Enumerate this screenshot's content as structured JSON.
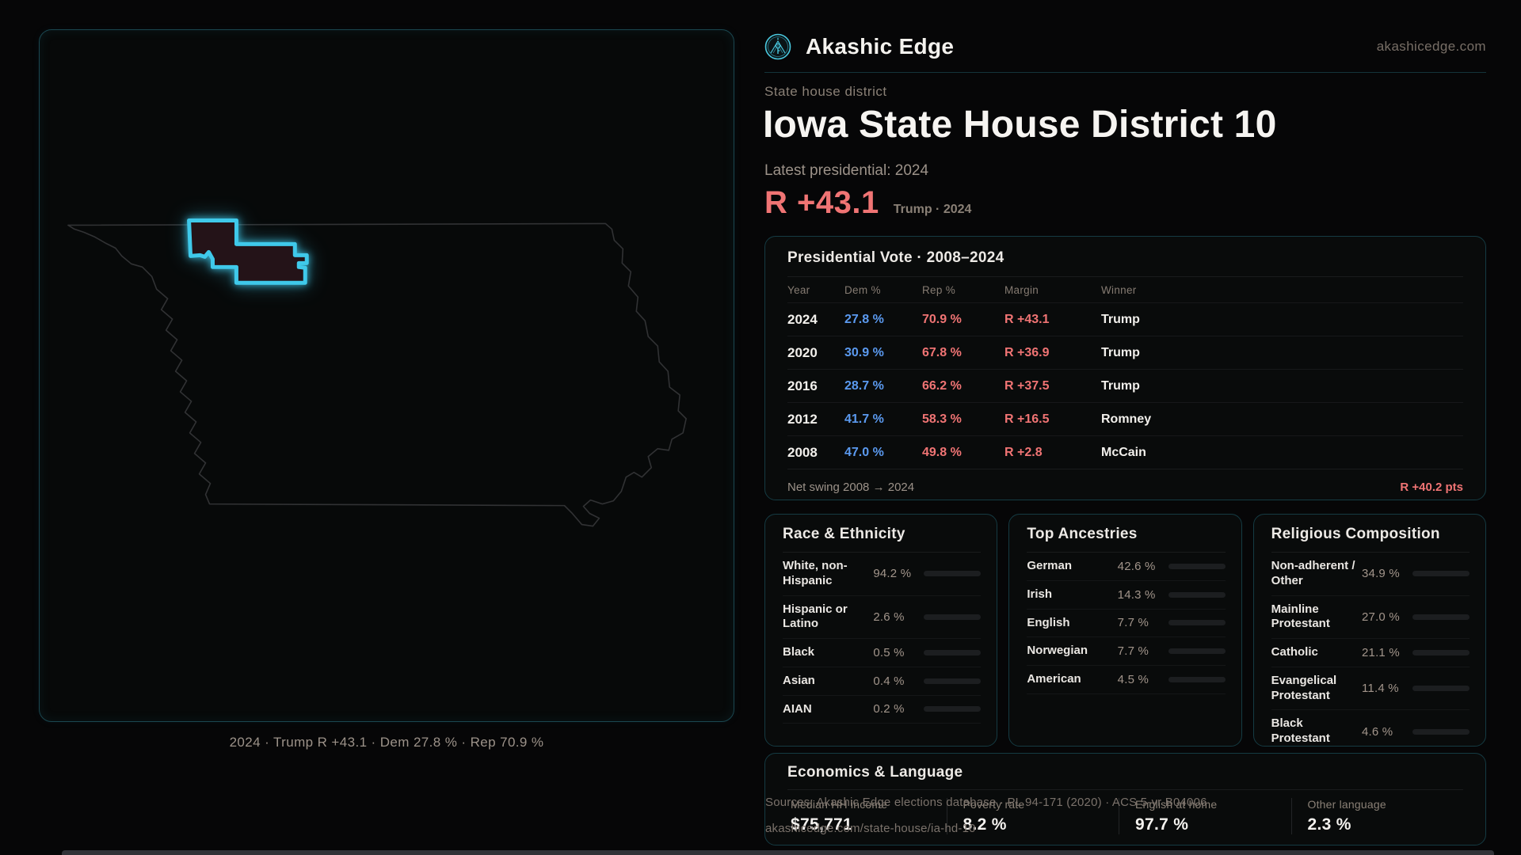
{
  "brand": {
    "name": "Akashic Edge",
    "domain": "akashicedge.com"
  },
  "header": {
    "kicker": "State house district",
    "title": "Iowa State House District 10",
    "latest_label": "Latest presidential: 2024",
    "margin_value": "R +43.1",
    "margin_context": "Trump · 2024"
  },
  "map": {
    "caption": "2024 · Trump R +43.1 · Dem 27.8 % · Rep 70.9 %"
  },
  "presidential_table": {
    "title": "Presidential Vote · 2008–2024",
    "columns": [
      "Year",
      "Dem %",
      "Rep %",
      "Margin",
      "Winner"
    ],
    "rows": [
      {
        "year": "2024",
        "dem": "27.8 %",
        "rep": "70.9 %",
        "margin": "R +43.1",
        "winner": "Trump"
      },
      {
        "year": "2020",
        "dem": "30.9 %",
        "rep": "67.8 %",
        "margin": "R +36.9",
        "winner": "Trump"
      },
      {
        "year": "2016",
        "dem": "28.7 %",
        "rep": "66.2 %",
        "margin": "R +37.5",
        "winner": "Trump"
      },
      {
        "year": "2012",
        "dem": "41.7 %",
        "rep": "58.3 %",
        "margin": "R +16.5",
        "winner": "Romney"
      },
      {
        "year": "2008",
        "dem": "47.0 %",
        "rep": "49.8 %",
        "margin": "R +2.8",
        "winner": "McCain"
      }
    ],
    "footer_label": "Net swing 2008 → 2024",
    "footer_value": "R +40.2 pts"
  },
  "race_panel": {
    "title": "Race & Ethnicity",
    "rows": [
      {
        "label": "White, non-Hispanic",
        "value": "94.2 %",
        "pct": 94.2,
        "color": "#9db1c7"
      },
      {
        "label": "Hispanic or Latino",
        "value": "2.6 %",
        "pct": 2.6,
        "color": "#e5973c"
      },
      {
        "label": "Black",
        "value": "0.5 %",
        "pct": 0.5,
        "color": "#8f7ff0"
      },
      {
        "label": "Asian",
        "value": "0.4 %",
        "pct": 0.4,
        "color": "#37c2a0"
      },
      {
        "label": "AIAN",
        "value": "0.2 %",
        "pct": 0.2,
        "color": "#6a6a6a"
      }
    ]
  },
  "ancestry_panel": {
    "title": "Top Ancestries",
    "rows": [
      {
        "label": "German",
        "value": "42.6 %",
        "pct": 42.6,
        "color": "#9db1c7"
      },
      {
        "label": "Irish",
        "value": "14.3 %",
        "pct": 14.3,
        "color": "#9db1c7"
      },
      {
        "label": "English",
        "value": "7.7 %",
        "pct": 7.7,
        "color": "#9db1c7"
      },
      {
        "label": "Norwegian",
        "value": "7.7 %",
        "pct": 7.7,
        "color": "#9db1c7"
      },
      {
        "label": "American",
        "value": "4.5 %",
        "pct": 4.5,
        "color": "#9db1c7"
      }
    ]
  },
  "religion_panel": {
    "title": "Religious Composition",
    "rows": [
      {
        "label": "Non-adherent / Other",
        "value": "34.9 %",
        "pct": 34.9,
        "color": "#687080"
      },
      {
        "label": "Mainline Protestant",
        "value": "27.0 %",
        "pct": 27.0,
        "color": "#4a8fe0"
      },
      {
        "label": "Catholic",
        "value": "21.1 %",
        "pct": 21.1,
        "color": "#e3bf3a"
      },
      {
        "label": "Evangelical Protestant",
        "value": "11.4 %",
        "pct": 11.4,
        "color": "#e06a6a"
      },
      {
        "label": "Black Protestant",
        "value": "4.6 %",
        "pct": 4.6,
        "color": "#7f5df0"
      }
    ]
  },
  "econ_panel": {
    "title": "Economics & Language",
    "stats": [
      {
        "label": "Median HH income",
        "value": "$75,771"
      },
      {
        "label": "Poverty rate",
        "value": "8.2 %"
      },
      {
        "label": "English at home",
        "value": "97.7 %"
      },
      {
        "label": "Other language",
        "value": "2.3 %"
      }
    ]
  },
  "footer": {
    "sources": "Sources: Akashic Edge elections database · PL 94-171 (2020) · ACS 5-yr B04006",
    "permalink": "akashicedge.com/state-house/ia-hd-10"
  },
  "colors": {
    "accent_cyan": "#3fc9ea",
    "dem_blue": "#5b9af0",
    "rep_red": "#f07474",
    "panel_border": "#153b43",
    "muted_text": "#8a8076"
  }
}
